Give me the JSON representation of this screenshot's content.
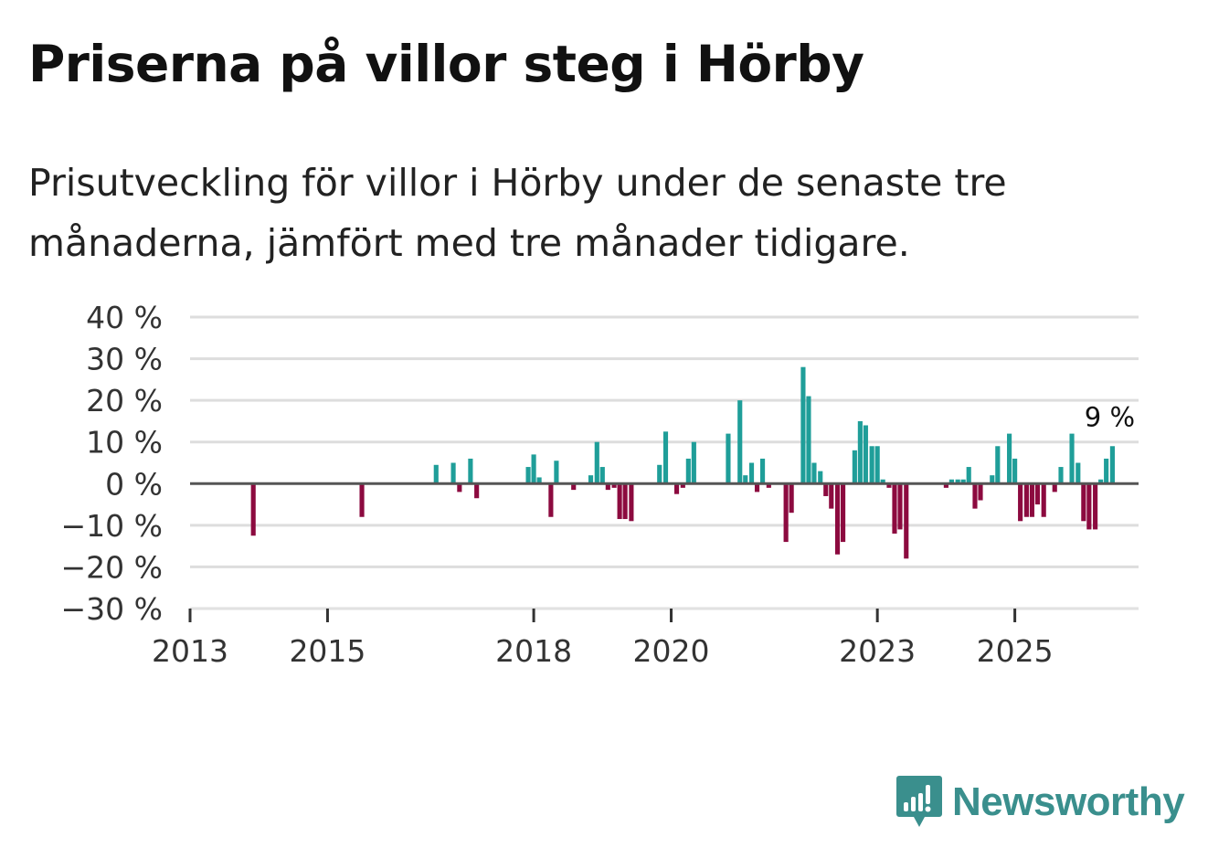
{
  "title": "Priserna på villor steg i Hörby",
  "subtitle": "Prisutveckling för villor i Hörby under de senaste tre månaderna, jämfört med tre månader tidigare.",
  "brand": {
    "name": "Newsworthy"
  },
  "colors": {
    "positive": "#1f9e99",
    "negative": "#8c0a3f",
    "grid": "#dddddd",
    "baseline": "#555555"
  },
  "chart_data": {
    "type": "bar",
    "title": "Priserna på villor steg i Hörby",
    "ylabel": "",
    "xlabel": "",
    "ylim": [
      -30,
      40
    ],
    "xlim": [
      2013.0,
      2026.8
    ],
    "y_ticks": [
      40,
      30,
      20,
      10,
      0,
      -10,
      -20,
      -30
    ],
    "y_tick_labels": [
      "40 %",
      "30 %",
      "20 %",
      "10 %",
      "0 %",
      "−10 %",
      "−20 %",
      "−30 %"
    ],
    "x_ticks": [
      2013,
      2015,
      2018,
      2020,
      2023,
      2025
    ],
    "x_tick_labels": [
      "2013",
      "2015",
      "2018",
      "2020",
      "2023",
      "2025"
    ],
    "end_label": "9 %",
    "series": [
      {
        "name": "Prisutveckling",
        "points": [
          {
            "x": 2013.92,
            "y": -12.5
          },
          {
            "x": 2015.5,
            "y": -8
          },
          {
            "x": 2016.58,
            "y": 4.5
          },
          {
            "x": 2016.83,
            "y": 5
          },
          {
            "x": 2016.92,
            "y": -2
          },
          {
            "x": 2017.08,
            "y": 6
          },
          {
            "x": 2017.17,
            "y": -3.5
          },
          {
            "x": 2017.92,
            "y": 4
          },
          {
            "x": 2018.0,
            "y": 7
          },
          {
            "x": 2018.08,
            "y": 1.5
          },
          {
            "x": 2018.25,
            "y": -8
          },
          {
            "x": 2018.33,
            "y": 5.5
          },
          {
            "x": 2018.58,
            "y": -1.5
          },
          {
            "x": 2018.83,
            "y": 2
          },
          {
            "x": 2018.92,
            "y": 10
          },
          {
            "x": 2019.0,
            "y": 4
          },
          {
            "x": 2019.08,
            "y": -1.5
          },
          {
            "x": 2019.17,
            "y": -1
          },
          {
            "x": 2019.25,
            "y": -8.5
          },
          {
            "x": 2019.33,
            "y": -8.5
          },
          {
            "x": 2019.42,
            "y": -9
          },
          {
            "x": 2019.83,
            "y": 4.5
          },
          {
            "x": 2019.92,
            "y": 12.5
          },
          {
            "x": 2020.08,
            "y": -2.5
          },
          {
            "x": 2020.17,
            "y": -1
          },
          {
            "x": 2020.25,
            "y": 6
          },
          {
            "x": 2020.33,
            "y": 10
          },
          {
            "x": 2020.83,
            "y": 12
          },
          {
            "x": 2021.0,
            "y": 20
          },
          {
            "x": 2021.08,
            "y": 2
          },
          {
            "x": 2021.17,
            "y": 5
          },
          {
            "x": 2021.25,
            "y": -2
          },
          {
            "x": 2021.33,
            "y": 6
          },
          {
            "x": 2021.42,
            "y": -1
          },
          {
            "x": 2021.67,
            "y": -14
          },
          {
            "x": 2021.75,
            "y": -7
          },
          {
            "x": 2021.92,
            "y": 28
          },
          {
            "x": 2022.0,
            "y": 21
          },
          {
            "x": 2022.08,
            "y": 5
          },
          {
            "x": 2022.17,
            "y": 3
          },
          {
            "x": 2022.25,
            "y": -3
          },
          {
            "x": 2022.33,
            "y": -6
          },
          {
            "x": 2022.42,
            "y": -17
          },
          {
            "x": 2022.5,
            "y": -14
          },
          {
            "x": 2022.67,
            "y": 8
          },
          {
            "x": 2022.75,
            "y": 15
          },
          {
            "x": 2022.83,
            "y": 14
          },
          {
            "x": 2022.92,
            "y": 9
          },
          {
            "x": 2023.0,
            "y": 9
          },
          {
            "x": 2023.08,
            "y": 1
          },
          {
            "x": 2023.17,
            "y": -1
          },
          {
            "x": 2023.25,
            "y": -12
          },
          {
            "x": 2023.33,
            "y": -11
          },
          {
            "x": 2023.42,
            "y": -18
          },
          {
            "x": 2024.0,
            "y": -1
          },
          {
            "x": 2024.08,
            "y": 1
          },
          {
            "x": 2024.17,
            "y": 1
          },
          {
            "x": 2024.25,
            "y": 1
          },
          {
            "x": 2024.33,
            "y": 4
          },
          {
            "x": 2024.42,
            "y": -6
          },
          {
            "x": 2024.5,
            "y": -4
          },
          {
            "x": 2024.67,
            "y": 2
          },
          {
            "x": 2024.75,
            "y": 9
          },
          {
            "x": 2024.92,
            "y": 12
          },
          {
            "x": 2025.0,
            "y": 6
          },
          {
            "x": 2025.08,
            "y": -9
          },
          {
            "x": 2025.17,
            "y": -8
          },
          {
            "x": 2025.25,
            "y": -8
          },
          {
            "x": 2025.33,
            "y": -5
          },
          {
            "x": 2025.42,
            "y": -8
          },
          {
            "x": 2025.58,
            "y": -2
          },
          {
            "x": 2025.67,
            "y": 4
          },
          {
            "x": 2025.83,
            "y": 12
          },
          {
            "x": 2025.92,
            "y": 5
          },
          {
            "x": 2026.0,
            "y": -9
          },
          {
            "x": 2026.08,
            "y": -11
          },
          {
            "x": 2026.17,
            "y": -11
          },
          {
            "x": 2026.25,
            "y": 1
          },
          {
            "x": 2026.33,
            "y": 6
          },
          {
            "x": 2026.42,
            "y": 9
          }
        ]
      }
    ]
  }
}
